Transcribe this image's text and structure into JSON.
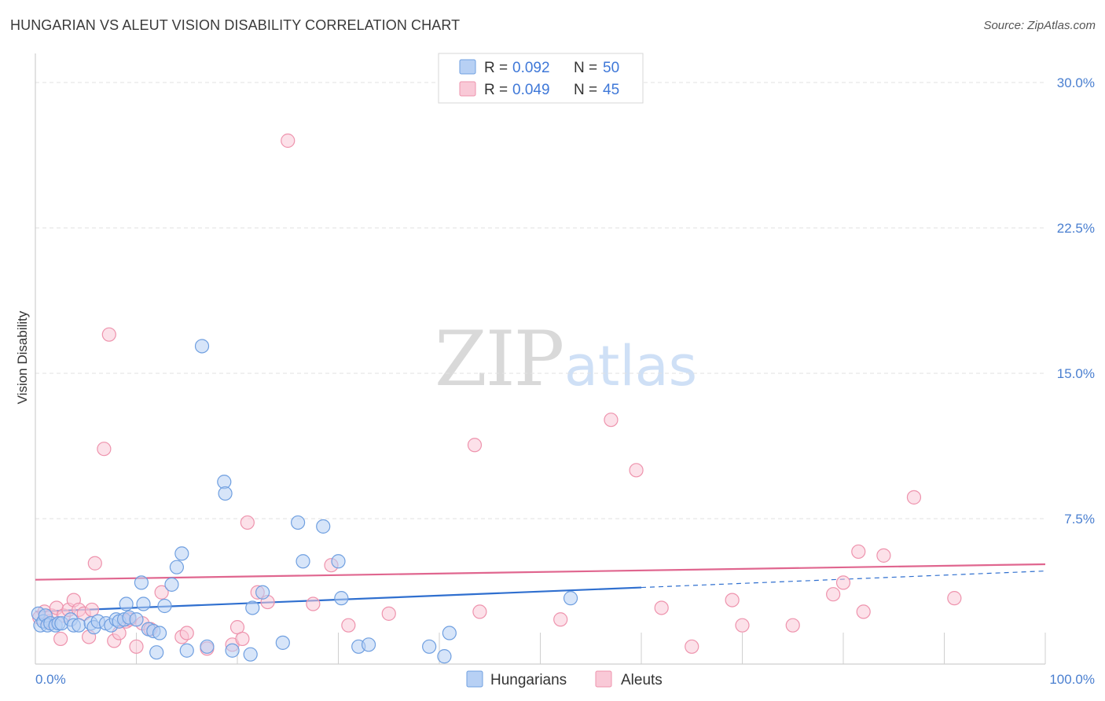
{
  "title": "HUNGARIAN VS ALEUT VISION DISABILITY CORRELATION CHART",
  "source": "Source: ZipAtlas.com",
  "colors": {
    "blue_fill": "#b7d0f4",
    "blue_stroke": "#6f9fe0",
    "blue_line": "#2f6fcf",
    "pink_fill": "#f9c9d7",
    "pink_stroke": "#ee93ad",
    "pink_line": "#e0668f",
    "grid": "#e2e2e2",
    "axis_text": "#4a7fd0"
  },
  "chart_data": {
    "type": "scatter",
    "ylabel": "Vision Disability",
    "xlim": [
      0,
      100
    ],
    "ylim": [
      0,
      31.5
    ],
    "x_tick_labels": [
      "0.0%",
      "100.0%"
    ],
    "y_ticks": [
      7.5,
      15.0,
      22.5,
      30.0
    ],
    "y_tick_labels": [
      "7.5%",
      "15.0%",
      "22.5%",
      "30.0%"
    ],
    "legend": [
      {
        "r_label": "R =",
        "r_value": "0.092",
        "n_label": "N =",
        "n_value": "50"
      },
      {
        "r_label": "R =",
        "r_value": "0.049",
        "n_label": "N =",
        "n_value": "45"
      }
    ],
    "series": [
      {
        "name": "Hungarians",
        "trend": {
          "x0": 0,
          "y0": 2.7,
          "x1": 60,
          "y1": 3.95,
          "dash_x1": 100,
          "dash_y1": 4.8
        },
        "points": [
          [
            0.3,
            2.6
          ],
          [
            0.5,
            2.0
          ],
          [
            0.8,
            2.2
          ],
          [
            1.0,
            2.5
          ],
          [
            1.2,
            2.0
          ],
          [
            1.5,
            2.1
          ],
          [
            2.0,
            2.0
          ],
          [
            2.3,
            2.1
          ],
          [
            2.6,
            2.1
          ],
          [
            3.5,
            2.3
          ],
          [
            3.8,
            2.0
          ],
          [
            4.3,
            2.0
          ],
          [
            5.5,
            2.1
          ],
          [
            5.8,
            1.9
          ],
          [
            6.2,
            2.2
          ],
          [
            7.0,
            2.1
          ],
          [
            7.5,
            2.0
          ],
          [
            8.0,
            2.3
          ],
          [
            8.3,
            2.2
          ],
          [
            8.8,
            2.3
          ],
          [
            9.3,
            2.4
          ],
          [
            10.0,
            2.3
          ],
          [
            9.0,
            3.1
          ],
          [
            10.5,
            4.2
          ],
          [
            10.7,
            3.1
          ],
          [
            11.2,
            1.8
          ],
          [
            11.7,
            1.7
          ],
          [
            12.0,
            0.6
          ],
          [
            12.3,
            1.6
          ],
          [
            12.8,
            3.0
          ],
          [
            13.5,
            4.1
          ],
          [
            14.0,
            5.0
          ],
          [
            14.5,
            5.7
          ],
          [
            15.0,
            0.7
          ],
          [
            16.5,
            16.4
          ],
          [
            17.0,
            0.9
          ],
          [
            18.7,
            9.4
          ],
          [
            18.8,
            8.8
          ],
          [
            19.5,
            0.7
          ],
          [
            21.3,
            0.5
          ],
          [
            21.5,
            2.9
          ],
          [
            22.5,
            3.7
          ],
          [
            24.5,
            1.1
          ],
          [
            26.0,
            7.3
          ],
          [
            26.5,
            5.3
          ],
          [
            28.5,
            7.1
          ],
          [
            30.0,
            5.3
          ],
          [
            30.3,
            3.4
          ],
          [
            32.0,
            0.9
          ],
          [
            33.0,
            1.0
          ],
          [
            39.0,
            0.9
          ],
          [
            40.5,
            0.4
          ],
          [
            41.0,
            1.6
          ],
          [
            53.0,
            3.4
          ]
        ]
      },
      {
        "name": "Aleuts",
        "trend": {
          "x0": 0,
          "y0": 4.35,
          "x1": 100,
          "y1": 5.15
        },
        "points": [
          [
            0.4,
            2.4
          ],
          [
            0.9,
            2.7
          ],
          [
            1.3,
            2.2
          ],
          [
            1.6,
            2.5
          ],
          [
            2.1,
            2.9
          ],
          [
            2.5,
            1.3
          ],
          [
            2.8,
            2.5
          ],
          [
            3.3,
            2.8
          ],
          [
            3.8,
            3.3
          ],
          [
            4.3,
            2.8
          ],
          [
            4.8,
            2.6
          ],
          [
            5.3,
            1.4
          ],
          [
            5.6,
            2.8
          ],
          [
            5.9,
            5.2
          ],
          [
            6.8,
            11.1
          ],
          [
            7.3,
            17.0
          ],
          [
            7.8,
            1.2
          ],
          [
            8.3,
            1.6
          ],
          [
            9.0,
            2.2
          ],
          [
            9.3,
            2.3
          ],
          [
            10.0,
            0.9
          ],
          [
            10.6,
            2.1
          ],
          [
            11.4,
            1.8
          ],
          [
            12.5,
            3.7
          ],
          [
            14.5,
            1.4
          ],
          [
            15.0,
            1.6
          ],
          [
            17.0,
            0.8
          ],
          [
            19.5,
            1.0
          ],
          [
            20.0,
            1.9
          ],
          [
            20.5,
            1.3
          ],
          [
            21.0,
            7.3
          ],
          [
            22.0,
            3.7
          ],
          [
            23.0,
            3.2
          ],
          [
            25.0,
            27.0
          ],
          [
            27.5,
            3.1
          ],
          [
            29.3,
            5.1
          ],
          [
            31.0,
            2.0
          ],
          [
            35.0,
            2.6
          ],
          [
            43.5,
            11.3
          ],
          [
            44.0,
            2.7
          ],
          [
            52.0,
            2.3
          ],
          [
            57.0,
            12.6
          ],
          [
            59.5,
            10.0
          ],
          [
            62.0,
            2.9
          ],
          [
            65.0,
            0.9
          ],
          [
            69.0,
            3.3
          ],
          [
            70.0,
            2.0
          ],
          [
            75.0,
            2.0
          ],
          [
            79.0,
            3.6
          ],
          [
            80.0,
            4.2
          ],
          [
            81.5,
            5.8
          ],
          [
            82.0,
            2.7
          ],
          [
            84.0,
            5.6
          ],
          [
            87.0,
            8.6
          ],
          [
            91.0,
            3.4
          ]
        ]
      }
    ]
  }
}
